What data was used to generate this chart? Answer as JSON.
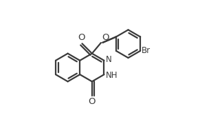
{
  "bg_color": "#ffffff",
  "line_color": "#3a3a3a",
  "line_width": 1.6,
  "font_size": 8.5,
  "fig_width": 2.91,
  "fig_height": 1.96,
  "dpi": 100,
  "xlim": [
    -0.05,
    1.05
  ],
  "ylim": [
    -0.05,
    1.05
  ]
}
